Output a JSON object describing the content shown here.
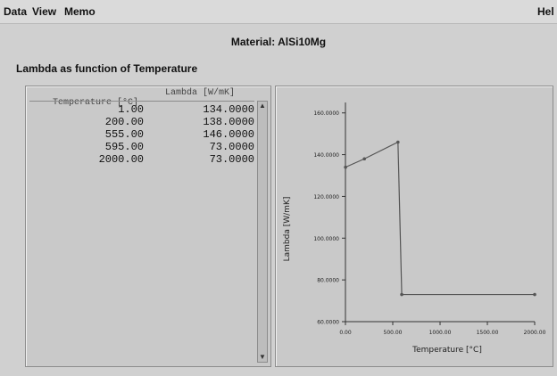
{
  "menu": {
    "data": "Data",
    "view": "View",
    "memo": "Memo",
    "help": "Hel"
  },
  "title": "Material: AlSi10Mg",
  "section_label": "Lambda as function of Temperature",
  "table": {
    "headers": [
      "Temperature [°C]",
      "Lambda [W/mK]"
    ],
    "rows": [
      [
        "1.00",
        "134.0000"
      ],
      [
        "200.00",
        "138.0000"
      ],
      [
        "555.00",
        "146.0000"
      ],
      [
        "595.00",
        "73.0000"
      ],
      [
        "2000.00",
        "73.0000"
      ]
    ]
  },
  "chart_data": {
    "type": "line",
    "title": "",
    "xlabel": "Temperature [°C]",
    "ylabel": "Lambda [W/mK]",
    "x": [
      1.0,
      200.0,
      555.0,
      595.0,
      2000.0
    ],
    "series": [
      {
        "values": [
          134.0,
          138.0,
          146.0,
          73.0,
          73.0
        ]
      }
    ],
    "xlim": [
      0,
      2000
    ],
    "ylim": [
      60,
      165
    ],
    "xticks": [
      "0.00",
      "500.00",
      "1000.00",
      "1500.00",
      "2000.00"
    ],
    "yticks": [
      "60.0000",
      "80.0000",
      "100.0000",
      "120.0000",
      "140.0000",
      "160.0000"
    ],
    "grid": false
  }
}
